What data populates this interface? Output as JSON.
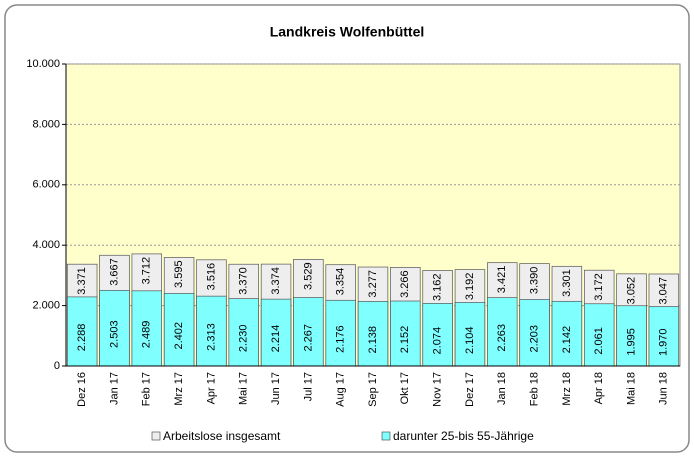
{
  "chart_data": {
    "type": "bar",
    "title": "Landkreis Wolfenbüttel",
    "categories": [
      "Dez 16",
      "Jan 17",
      "Feb 17",
      "Mrz 17",
      "Apr 17",
      "Mai 17",
      "Jun 17",
      "Jul 17",
      "Aug 17",
      "Sep 17",
      "Okt 17",
      "Nov 17",
      "Dez 17",
      "Jan 18",
      "Feb 18",
      "Mrz 18",
      "Apr 18",
      "Mai 18",
      "Jun 18"
    ],
    "series": [
      {
        "name": "Arbeitslose insgesamt",
        "color": "#eeeeee",
        "values": [
          3371,
          3667,
          3712,
          3595,
          3516,
          3370,
          3374,
          3529,
          3354,
          3277,
          3266,
          3162,
          3192,
          3421,
          3390,
          3301,
          3172,
          3052,
          3047
        ],
        "value_labels": [
          "3.371",
          "3.667",
          "3.712",
          "3.595",
          "3.516",
          "3.370",
          "3.374",
          "3.529",
          "3.354",
          "3.277",
          "3.266",
          "3.162",
          "3.192",
          "3.421",
          "3.390",
          "3.301",
          "3.172",
          "3.052",
          "3.047"
        ]
      },
      {
        "name": "darunter 25-bis 55-Jährige",
        "color": "#80ffff",
        "values": [
          2288,
          2503,
          2489,
          2402,
          2313,
          2230,
          2214,
          2267,
          2176,
          2138,
          2152,
          2074,
          2104,
          2263,
          2203,
          2142,
          2061,
          1995,
          1970
        ],
        "value_labels": [
          "2.288",
          "2.503",
          "2.489",
          "2.402",
          "2.313",
          "2.230",
          "2.214",
          "2.267",
          "2.176",
          "2.138",
          "2.152",
          "2.074",
          "2.104",
          "2.263",
          "2.203",
          "2.142",
          "2.061",
          "1.995",
          "1.970"
        ]
      }
    ],
    "ylim": [
      0,
      10000
    ],
    "yticks": [
      0,
      {
        "value": 2000,
        "label": "2.000"
      },
      {
        "value": 4000,
        "label": "4.000"
      },
      {
        "value": 6000,
        "label": "6.000"
      },
      {
        "value": 8000,
        "label": "8.000"
      },
      {
        "value": 10000,
        "label": "10.000"
      }
    ],
    "grid": true,
    "plot_background": "#ffffcc"
  }
}
